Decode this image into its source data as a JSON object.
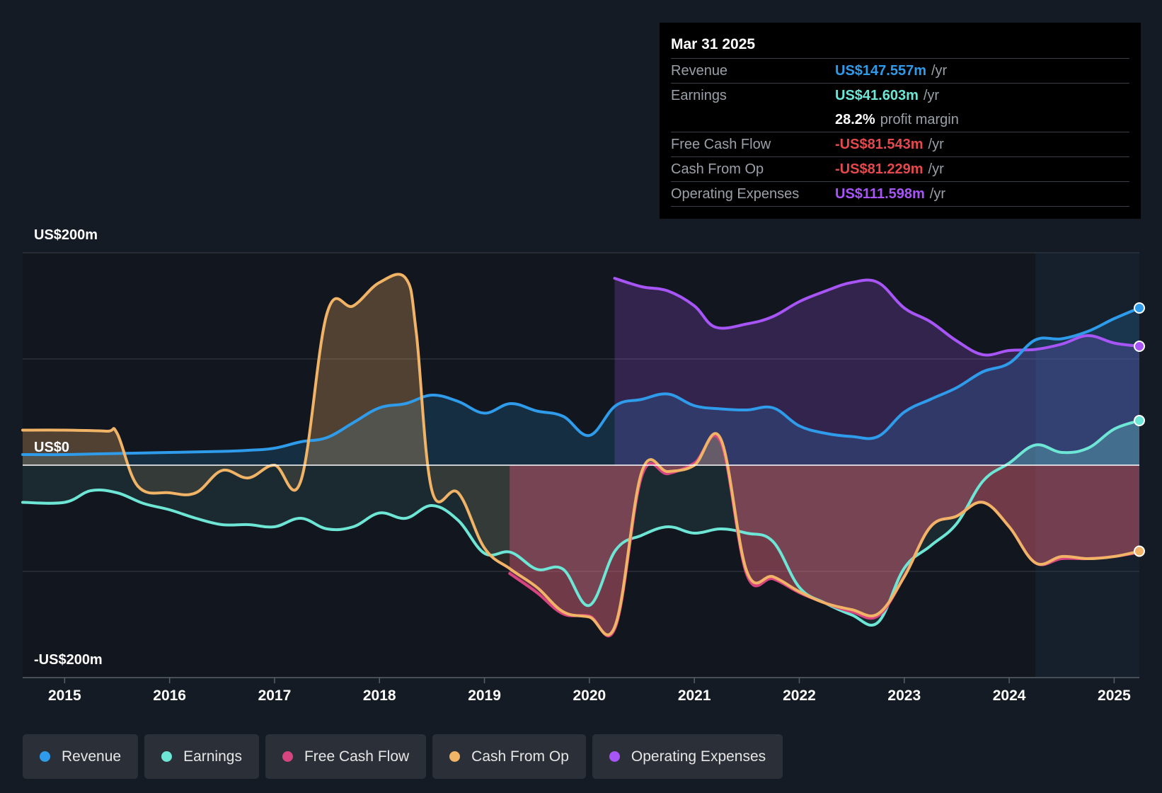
{
  "tooltip": {
    "date": "Mar 31 2025",
    "rows": [
      {
        "label": "Revenue",
        "value": "US$147.557m",
        "unit": "/yr",
        "color": "#2f9ceb"
      },
      {
        "label": "Earnings",
        "value": "US$41.603m",
        "unit": "/yr",
        "color": "#6ee6d6"
      },
      {
        "label": "",
        "value": "28.2%",
        "unit": "profit margin",
        "color": "#ffffff"
      },
      {
        "label": "Free Cash Flow",
        "value": "-US$81.543m",
        "unit": "/yr",
        "color": "#e5484d"
      },
      {
        "label": "Cash From Op",
        "value": "-US$81.229m",
        "unit": "/yr",
        "color": "#e5484d"
      },
      {
        "label": "Operating Expenses",
        "value": "US$111.598m",
        "unit": "/yr",
        "color": "#a855f7"
      }
    ]
  },
  "legend": [
    {
      "label": "Revenue",
      "color": "#2f9ceb"
    },
    {
      "label": "Earnings",
      "color": "#6ee6d6"
    },
    {
      "label": "Free Cash Flow",
      "color": "#d6457f"
    },
    {
      "label": "Cash From Op",
      "color": "#f1b467"
    },
    {
      "label": "Operating Expenses",
      "color": "#a855f7"
    }
  ],
  "chart_data": {
    "type": "area",
    "ylim": [
      -200,
      200
    ],
    "xlim": [
      2014.6,
      2025.24
    ],
    "ytick_labels": [
      {
        "label": "US$200m",
        "value": 200
      },
      {
        "label": "US$0",
        "value": 0
      },
      {
        "label": "-US$200m",
        "value": -200
      }
    ],
    "xticks": [
      2015,
      2016,
      2017,
      2018,
      2019,
      2020,
      2021,
      2022,
      2023,
      2024,
      2025
    ],
    "xtick_labels": [
      "2015",
      "2016",
      "2017",
      "2018",
      "2019",
      "2020",
      "2021",
      "2022",
      "2023",
      "2024",
      "2025"
    ],
    "forecast_start": 2024.25,
    "series": [
      {
        "name": "Operating Expenses",
        "color": "#a855f7",
        "x": [
          2020.24,
          2020.5,
          2020.75,
          2021.0,
          2021.2,
          2021.5,
          2021.75,
          2022.0,
          2022.25,
          2022.5,
          2022.75,
          2023.0,
          2023.25,
          2023.5,
          2023.75,
          2024.0,
          2024.25,
          2024.5,
          2024.75,
          2025.0,
          2025.24
        ],
        "y": [
          176,
          168,
          164,
          150,
          130,
          133,
          140,
          154,
          164,
          172,
          172,
          148,
          135,
          117,
          104,
          108,
          109,
          114,
          122,
          115,
          112
        ]
      },
      {
        "name": "Revenue",
        "color": "#2f9ceb",
        "x": [
          2014.6,
          2015.0,
          2015.5,
          2016.0,
          2016.5,
          2016.75,
          2017.0,
          2017.25,
          2017.5,
          2017.75,
          2018.0,
          2018.25,
          2018.5,
          2018.75,
          2019.0,
          2019.25,
          2019.5,
          2019.75,
          2020.0,
          2020.25,
          2020.5,
          2020.75,
          2021.0,
          2021.25,
          2021.5,
          2021.75,
          2022.0,
          2022.25,
          2022.5,
          2022.75,
          2023.0,
          2023.25,
          2023.5,
          2023.75,
          2024.0,
          2024.25,
          2024.5,
          2024.75,
          2025.0,
          2025.24
        ],
        "y": [
          10,
          10,
          11,
          12,
          13,
          14,
          16,
          22,
          26,
          40,
          54,
          58,
          66,
          60,
          49,
          58,
          51,
          46,
          28,
          56,
          62,
          67,
          56,
          53,
          52,
          54,
          37,
          30,
          27,
          27,
          50,
          62,
          73,
          88,
          96,
          118,
          119,
          126,
          138,
          148
        ]
      },
      {
        "name": "Earnings",
        "color": "#6ee6d6",
        "x": [
          2014.6,
          2015.0,
          2015.25,
          2015.5,
          2015.75,
          2016.0,
          2016.25,
          2016.5,
          2016.75,
          2017.0,
          2017.25,
          2017.5,
          2017.75,
          2018.0,
          2018.25,
          2018.5,
          2018.75,
          2019.0,
          2019.25,
          2019.5,
          2019.75,
          2020.0,
          2020.25,
          2020.5,
          2020.75,
          2021.0,
          2021.25,
          2021.5,
          2021.75,
          2022.0,
          2022.25,
          2022.5,
          2022.75,
          2023.0,
          2023.25,
          2023.5,
          2023.75,
          2024.0,
          2024.25,
          2024.5,
          2024.75,
          2025.0,
          2025.24
        ],
        "y": [
          -35,
          -35,
          -24,
          -26,
          -36,
          -42,
          -50,
          -56,
          -56,
          -58,
          -50,
          -60,
          -58,
          -45,
          -50,
          -38,
          -52,
          -83,
          -82,
          -98,
          -98,
          -132,
          -80,
          -66,
          -58,
          -64,
          -60,
          -64,
          -72,
          -115,
          -130,
          -141,
          -148,
          -97,
          -76,
          -55,
          -15,
          2,
          19,
          12,
          16,
          34,
          42
        ]
      },
      {
        "name": "Free Cash Flow",
        "color": "#d6457f",
        "x": [
          2019.24,
          2019.5,
          2019.75,
          2020.0,
          2020.25,
          2020.5,
          2020.75,
          2021.0,
          2021.25,
          2021.5,
          2021.75,
          2022.0,
          2022.25,
          2022.5,
          2022.75,
          2023.0,
          2023.25,
          2023.5,
          2023.75,
          2024.0,
          2024.25,
          2024.5,
          2024.75,
          2025.0,
          2025.24
        ],
        "y": [
          -102,
          -120,
          -140,
          -142,
          -152,
          -10,
          -8,
          2,
          22,
          -103,
          -107,
          -120,
          -130,
          -138,
          -142,
          -105,
          -58,
          -48,
          -35,
          -58,
          -92,
          -88,
          -88,
          -86,
          -82
        ]
      },
      {
        "name": "Cash From Op",
        "color": "#f1b467",
        "x": [
          2014.6,
          2015.0,
          2015.4,
          2015.5,
          2015.7,
          2016.0,
          2016.25,
          2016.5,
          2016.75,
          2017.0,
          2017.25,
          2017.5,
          2017.75,
          2018.0,
          2018.25,
          2018.35,
          2018.5,
          2018.75,
          2019.0,
          2019.25,
          2019.5,
          2019.75,
          2020.0,
          2020.25,
          2020.5,
          2020.75,
          2021.0,
          2021.25,
          2021.5,
          2021.75,
          2022.0,
          2022.25,
          2022.5,
          2022.75,
          2023.0,
          2023.25,
          2023.5,
          2023.75,
          2024.0,
          2024.25,
          2024.5,
          2024.75,
          2025.0,
          2025.24
        ],
        "y": [
          33,
          33,
          32,
          30,
          -20,
          -26,
          -26,
          -5,
          -12,
          0,
          -15,
          143,
          150,
          172,
          176,
          125,
          -24,
          -26,
          -78,
          -98,
          -115,
          -138,
          -143,
          -150,
          -6,
          -6,
          0,
          25,
          -100,
          -105,
          -119,
          -130,
          -136,
          -140,
          -105,
          -58,
          -48,
          -35,
          -58,
          -92,
          -86,
          -88,
          -86,
          -81
        ]
      }
    ]
  }
}
